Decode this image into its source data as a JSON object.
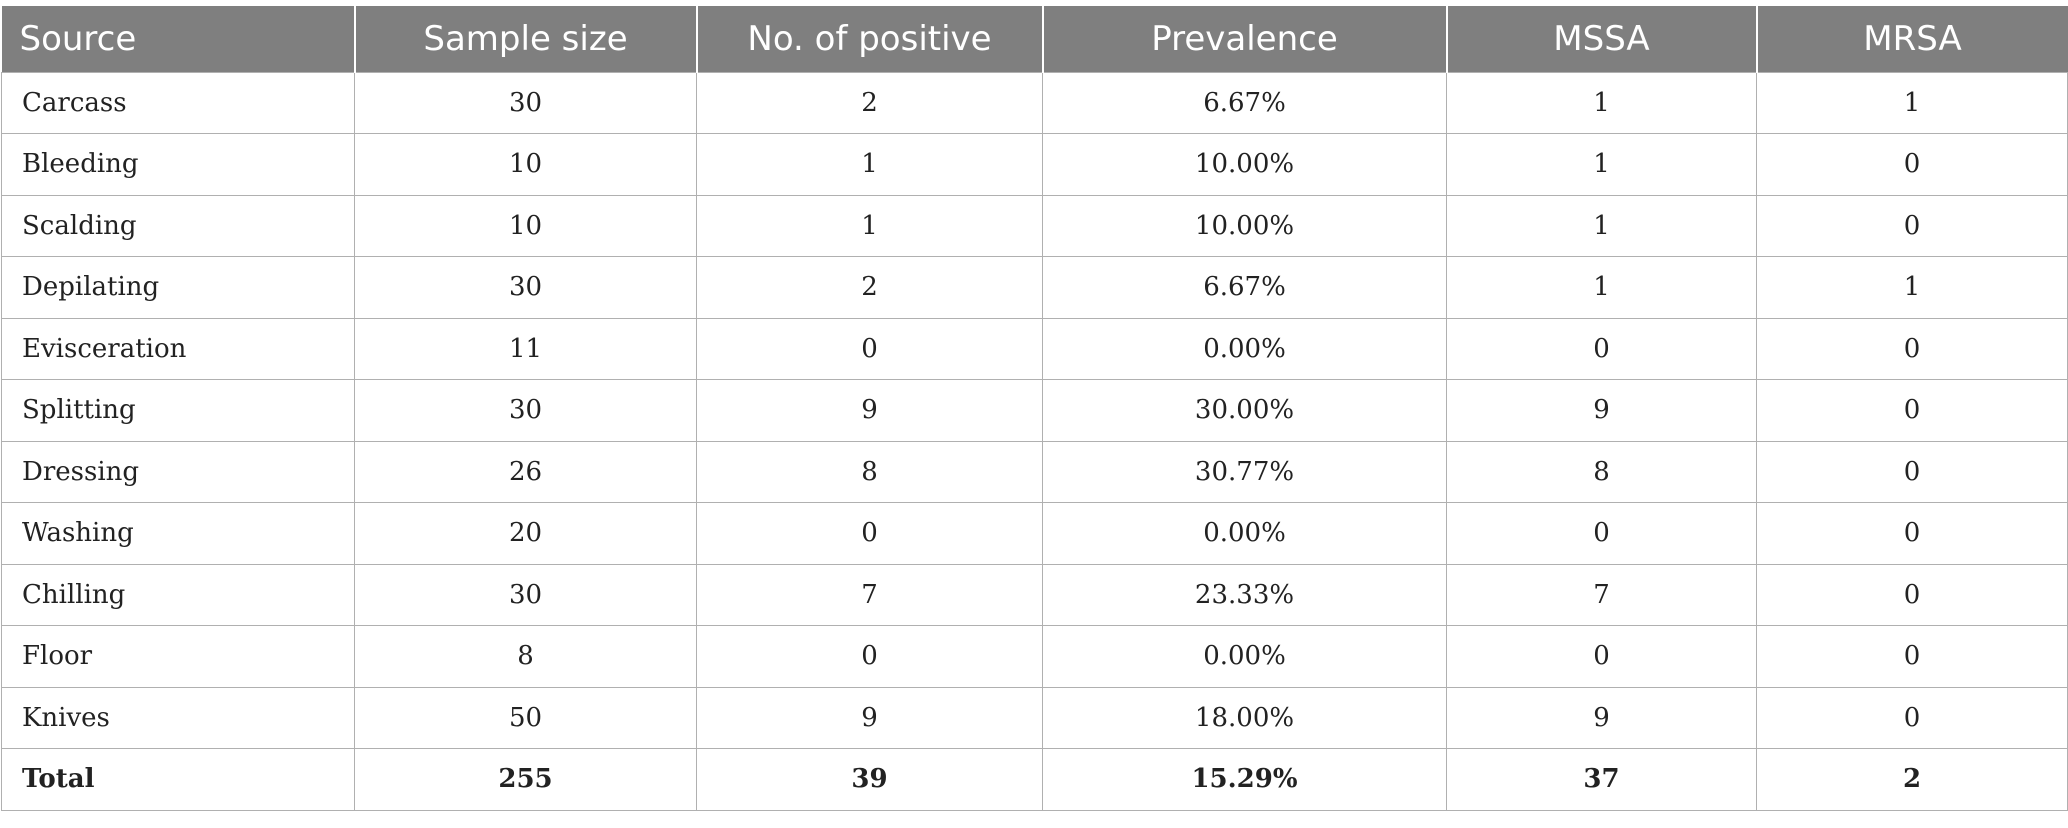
{
  "table": {
    "headers": [
      "Source",
      "Sample size",
      "No. of positive",
      "Prevalence",
      "MSSA",
      "MRSA"
    ],
    "rows": [
      [
        "Carcass",
        "30",
        "2",
        "6.67%",
        "1",
        "1"
      ],
      [
        "Bleeding",
        "10",
        "1",
        "10.00%",
        "1",
        "0"
      ],
      [
        "Scalding",
        "10",
        "1",
        "10.00%",
        "1",
        "0"
      ],
      [
        "Depilating",
        "30",
        "2",
        "6.67%",
        "1",
        "1"
      ],
      [
        "Evisceration",
        "11",
        "0",
        "0.00%",
        "0",
        "0"
      ],
      [
        "Splitting",
        "30",
        "9",
        "30.00%",
        "9",
        "0"
      ],
      [
        "Dressing",
        "26",
        "8",
        "30.77%",
        "8",
        "0"
      ],
      [
        "Washing",
        "20",
        "0",
        "0.00%",
        "0",
        "0"
      ],
      [
        "Chilling",
        "30",
        "7",
        "23.33%",
        "7",
        "0"
      ],
      [
        "Floor",
        "8",
        "0",
        "0.00%",
        "0",
        "0"
      ],
      [
        "Knives",
        "50",
        "9",
        "18.00%",
        "9",
        "0"
      ]
    ],
    "total": [
      "Total",
      "255",
      "39",
      "15.29%",
      "37",
      "2"
    ]
  },
  "colors": {
    "header_bg": "#7f7f7f",
    "header_text": "#ffffff",
    "grid": "#b0b0b0"
  }
}
